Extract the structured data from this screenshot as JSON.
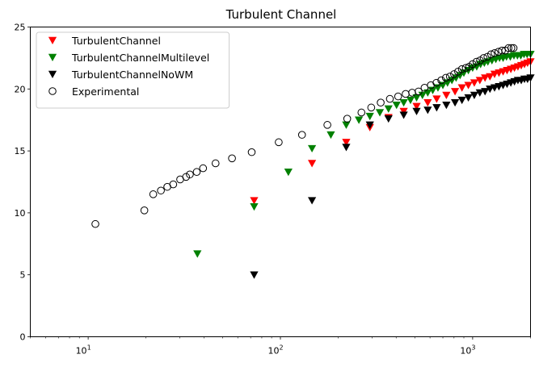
{
  "chart_data": {
    "type": "scatter",
    "title": "Turbulent Channel",
    "xlabel": "",
    "ylabel": "",
    "xscale": "log",
    "xlim": [
      5,
      2000
    ],
    "ylim": [
      0,
      25
    ],
    "grid": false,
    "legend_position": "top-left",
    "x_ticks": [
      {
        "value": 10,
        "base": "10",
        "exp": "1"
      },
      {
        "value": 100,
        "base": "10",
        "exp": "2"
      },
      {
        "value": 1000,
        "base": "10",
        "exp": "3"
      }
    ],
    "y_ticks": [
      {
        "value": 0,
        "label": "0"
      },
      {
        "value": 5,
        "label": "5"
      },
      {
        "value": 10,
        "label": "10"
      },
      {
        "value": 15,
        "label": "15"
      },
      {
        "value": 20,
        "label": "20"
      },
      {
        "value": 25,
        "label": "25"
      }
    ],
    "series": [
      {
        "name": "TurbulentChannel",
        "marker": "triangle-down",
        "color": "#ff0000",
        "fill": true,
        "points": [
          [
            73,
            11.0
          ],
          [
            146,
            14.0
          ],
          [
            220,
            15.7
          ],
          [
            292,
            16.9
          ],
          [
            365,
            17.7
          ],
          [
            438,
            18.2
          ],
          [
            511,
            18.6
          ],
          [
            584,
            18.9
          ],
          [
            650,
            19.2
          ],
          [
            730,
            19.5
          ],
          [
            810,
            19.8
          ],
          [
            880,
            20.1
          ],
          [
            950,
            20.3
          ],
          [
            1020,
            20.5
          ],
          [
            1090,
            20.7
          ],
          [
            1160,
            20.9
          ],
          [
            1230,
            21.0
          ],
          [
            1300,
            21.2
          ],
          [
            1370,
            21.3
          ],
          [
            1440,
            21.4
          ],
          [
            1510,
            21.5
          ],
          [
            1580,
            21.6
          ],
          [
            1650,
            21.7
          ],
          [
            1720,
            21.8
          ],
          [
            1790,
            21.9
          ],
          [
            1860,
            22.0
          ],
          [
            1930,
            22.1
          ],
          [
            2000,
            22.2
          ]
        ]
      },
      {
        "name": "TurbulentChannelMultilevel",
        "marker": "triangle-down",
        "color": "#008000",
        "fill": true,
        "points": [
          [
            37,
            6.7
          ],
          [
            73,
            10.5
          ],
          [
            110,
            13.3
          ],
          [
            146,
            15.2
          ],
          [
            183,
            16.3
          ],
          [
            220,
            17.1
          ],
          [
            256,
            17.5
          ],
          [
            292,
            17.8
          ],
          [
            329,
            18.1
          ],
          [
            365,
            18.4
          ],
          [
            402,
            18.7
          ],
          [
            438,
            18.9
          ],
          [
            475,
            19.1
          ],
          [
            511,
            19.3
          ],
          [
            548,
            19.5
          ],
          [
            584,
            19.7
          ],
          [
            620,
            19.9
          ],
          [
            660,
            20.1
          ],
          [
            700,
            20.3
          ],
          [
            740,
            20.5
          ],
          [
            780,
            20.7
          ],
          [
            820,
            20.9
          ],
          [
            860,
            21.1
          ],
          [
            900,
            21.3
          ],
          [
            950,
            21.5
          ],
          [
            1000,
            21.7
          ],
          [
            1050,
            21.8
          ],
          [
            1100,
            22.0
          ],
          [
            1150,
            22.1
          ],
          [
            1200,
            22.2
          ],
          [
            1260,
            22.3
          ],
          [
            1320,
            22.4
          ],
          [
            1380,
            22.5
          ],
          [
            1440,
            22.5
          ],
          [
            1500,
            22.6
          ],
          [
            1570,
            22.6
          ],
          [
            1640,
            22.7
          ],
          [
            1710,
            22.7
          ],
          [
            1780,
            22.7
          ],
          [
            1850,
            22.8
          ],
          [
            1920,
            22.8
          ],
          [
            2000,
            22.8
          ]
        ]
      },
      {
        "name": "TurbulentChannelNoWM",
        "marker": "triangle-down",
        "color": "#000000",
        "fill": true,
        "points": [
          [
            73,
            5.0
          ],
          [
            146,
            11.0
          ],
          [
            220,
            15.3
          ],
          [
            292,
            17.1
          ],
          [
            365,
            17.6
          ],
          [
            438,
            17.9
          ],
          [
            511,
            18.2
          ],
          [
            584,
            18.3
          ],
          [
            650,
            18.5
          ],
          [
            730,
            18.7
          ],
          [
            810,
            18.9
          ],
          [
            880,
            19.1
          ],
          [
            950,
            19.3
          ],
          [
            1020,
            19.5
          ],
          [
            1090,
            19.7
          ],
          [
            1160,
            19.8
          ],
          [
            1230,
            20.0
          ],
          [
            1300,
            20.1
          ],
          [
            1370,
            20.2
          ],
          [
            1440,
            20.3
          ],
          [
            1510,
            20.4
          ],
          [
            1580,
            20.5
          ],
          [
            1650,
            20.6
          ],
          [
            1720,
            20.7
          ],
          [
            1790,
            20.7
          ],
          [
            1860,
            20.8
          ],
          [
            1930,
            20.8
          ],
          [
            2000,
            20.9
          ]
        ]
      },
      {
        "name": "Experimental",
        "marker": "circle",
        "color": "#000000",
        "fill": false,
        "points": [
          [
            10.9,
            9.1
          ],
          [
            19.6,
            10.2
          ],
          [
            21.8,
            11.5
          ],
          [
            23.9,
            11.8
          ],
          [
            25.8,
            12.1
          ],
          [
            27.7,
            12.3
          ],
          [
            30.1,
            12.7
          ],
          [
            32.3,
            12.9
          ],
          [
            33.8,
            13.1
          ],
          [
            36.7,
            13.3
          ],
          [
            39.6,
            13.6
          ],
          [
            46.0,
            14.0
          ],
          [
            56.0,
            14.4
          ],
          [
            70.9,
            14.9
          ],
          [
            98.0,
            15.7
          ],
          [
            129.5,
            16.3
          ],
          [
            175.5,
            17.1
          ],
          [
            222.6,
            17.6
          ],
          [
            263.9,
            18.1
          ],
          [
            296.8,
            18.5
          ],
          [
            332.4,
            18.9
          ],
          [
            371.1,
            19.2
          ],
          [
            409.6,
            19.4
          ],
          [
            448.3,
            19.6
          ],
          [
            484.4,
            19.7
          ],
          [
            523.1,
            19.8
          ],
          [
            562.1,
            20.1
          ],
          [
            606.0,
            20.3
          ],
          [
            648.1,
            20.5
          ],
          [
            686.8,
            20.7
          ],
          [
            725.4,
            20.9
          ],
          [
            761.6,
            21.0
          ],
          [
            800.3,
            21.2
          ],
          [
            839.8,
            21.4
          ],
          [
            878.6,
            21.6
          ],
          [
            921.2,
            21.7
          ],
          [
            960.0,
            21.8
          ],
          [
            999.0,
            22.0
          ],
          [
            1047.0,
            22.2
          ],
          [
            1092.1,
            22.3
          ],
          [
            1140.5,
            22.5
          ],
          [
            1193.9,
            22.6
          ],
          [
            1247.7,
            22.8
          ],
          [
            1300.9,
            22.9
          ],
          [
            1361.8,
            23.0
          ],
          [
            1420.3,
            23.1
          ],
          [
            1478.4,
            23.1
          ],
          [
            1536.5,
            23.3
          ],
          [
            1589.8,
            23.3
          ],
          [
            1632.8,
            23.3
          ]
        ]
      }
    ]
  }
}
